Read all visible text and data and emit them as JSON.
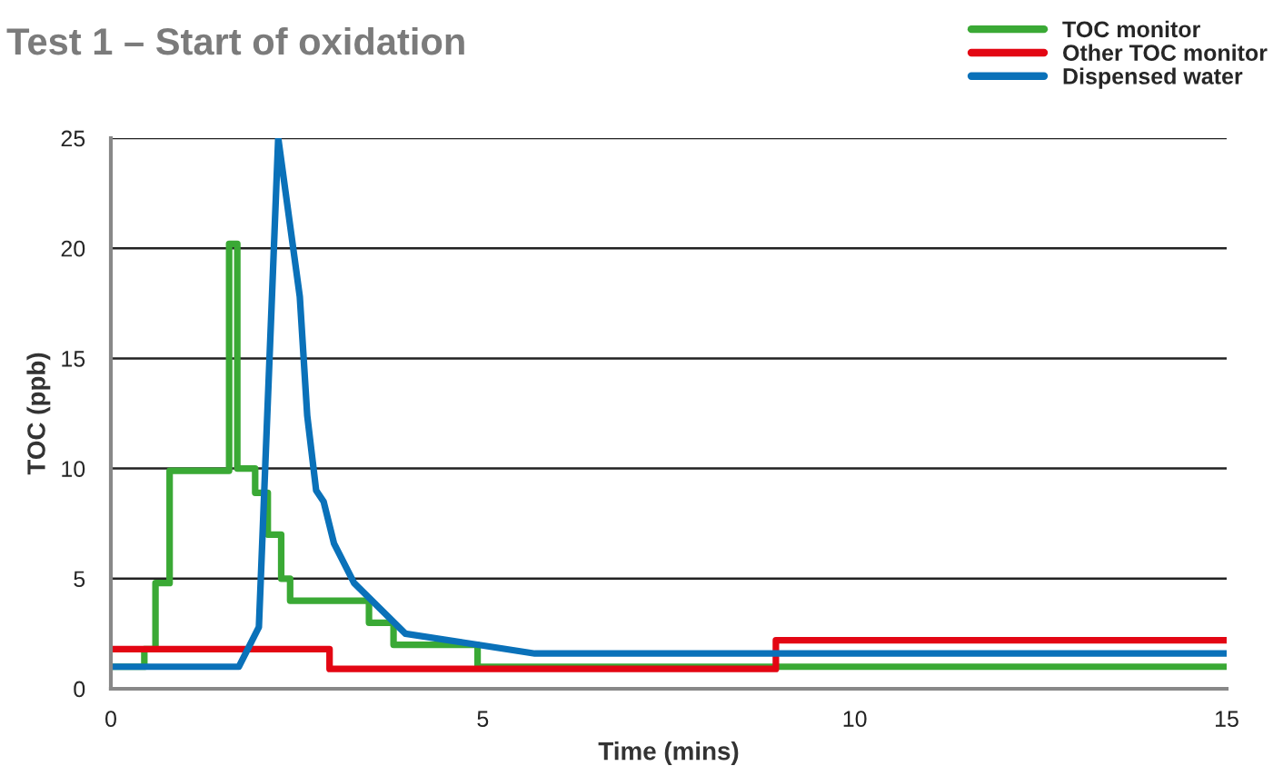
{
  "chart_data": {
    "type": "line",
    "title": "Test 1 – Start of oxidation",
    "xlabel": "Time (mins)",
    "ylabel": "TOC (ppb)",
    "xlim": [
      0,
      15
    ],
    "xticks": [
      0,
      5,
      10,
      15
    ],
    "ylim": [
      0,
      25
    ],
    "yticks": [
      0,
      5,
      10,
      15,
      20,
      25
    ],
    "grid": "y",
    "legend": "top right",
    "line_style": "solid",
    "marker": "none",
    "series": [
      {
        "name": "TOC monitor",
        "type": "step",
        "color": "#3aa935",
        "x": [
          0,
          0.45,
          0.6,
          0.79,
          1.59,
          1.7,
          1.94,
          2.11,
          2.29,
          2.41,
          3.47,
          3.8,
          4.93,
          15
        ],
        "values": [
          1.0,
          1.8,
          4.8,
          9.9,
          20.2,
          10.0,
          8.9,
          7.0,
          5.0,
          4.0,
          3.0,
          2.0,
          1.0,
          1.0
        ]
      },
      {
        "name": "Other TOC monitor",
        "type": "step",
        "color": "#e30613",
        "x": [
          0,
          2.94,
          8.94,
          15
        ],
        "values": [
          1.8,
          0.9,
          2.2,
          2.2
        ]
      },
      {
        "name": "Dispensed water",
        "color": "#0a71b9",
        "x": [
          0,
          1.72,
          1.99,
          2.25,
          2.54,
          2.64,
          2.76,
          2.86,
          3.0,
          3.27,
          3.96,
          4.93,
          5.7,
          15
        ],
        "values": [
          1.0,
          1.0,
          2.8,
          25,
          17.8,
          12.4,
          9.0,
          8.5,
          6.6,
          4.8,
          2.5,
          2.0,
          1.6,
          1.6
        ]
      }
    ]
  }
}
